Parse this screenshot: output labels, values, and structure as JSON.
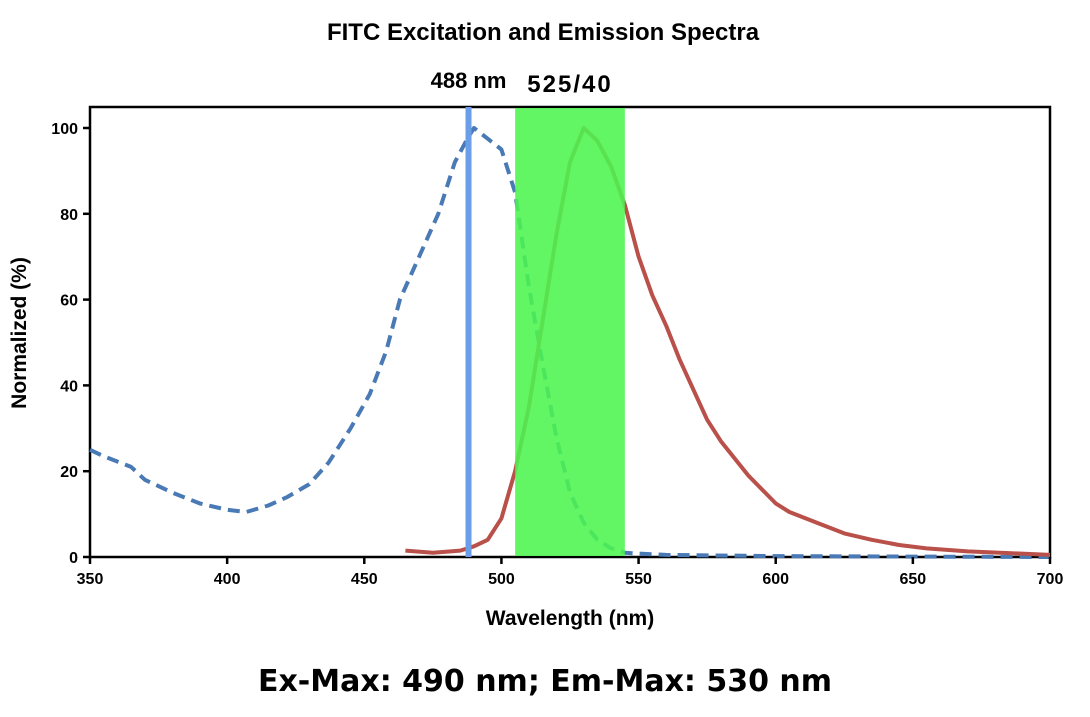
{
  "chart_data": {
    "type": "line",
    "title": "FITC Excitation and Emission Spectra",
    "xlabel": "Wavelength (nm)",
    "ylabel": "Normalized (%)",
    "xlim": [
      350,
      700
    ],
    "ylim": [
      0,
      100
    ],
    "xticks": [
      350,
      400,
      450,
      500,
      550,
      600,
      650,
      700
    ],
    "yticks": [
      0,
      20,
      40,
      60,
      80,
      100
    ],
    "grid": false,
    "series": [
      {
        "id": "excitation",
        "style": "dashed",
        "color": "#4a7ab5",
        "x": [
          350,
          355,
          365,
          370,
          380,
          390,
          400,
          407,
          415,
          422,
          430,
          437,
          445,
          452,
          458,
          463,
          470,
          477,
          483,
          488,
          490,
          495,
          500,
          505,
          510,
          515,
          520,
          525,
          530,
          535,
          540,
          545,
          550,
          560,
          600,
          650,
          700
        ],
        "y": [
          25,
          23.5,
          21,
          18,
          15,
          12.5,
          11,
          10.5,
          12,
          14,
          17,
          22,
          30,
          38,
          48,
          60,
          70,
          80,
          92,
          98,
          100,
          97.5,
          95,
          85,
          63,
          45,
          28,
          15,
          8,
          4,
          2,
          1,
          0.8,
          0.5,
          0.2,
          0.1,
          0
        ]
      },
      {
        "id": "emission",
        "style": "solid",
        "color": "#b9504a",
        "x": [
          465,
          475,
          485,
          490,
          495,
          500,
          505,
          510,
          515,
          520,
          525,
          530,
          535,
          540,
          545,
          550,
          555,
          560,
          565,
          570,
          575,
          580,
          590,
          600,
          605,
          615,
          625,
          635,
          645,
          655,
          670,
          685,
          700
        ],
        "y": [
          1.5,
          1,
          1.5,
          2.5,
          4,
          9,
          20,
          35,
          55,
          75,
          92,
          100,
          97,
          91,
          82,
          70,
          61,
          54,
          46,
          39,
          32,
          27,
          19,
          12.5,
          10.5,
          8,
          5.5,
          4,
          2.8,
          2,
          1.3,
          0.9,
          0.5
        ]
      }
    ],
    "annotations": {
      "laser_line": {
        "x": 488,
        "label": "488 nm",
        "color": "#6a9ee8"
      },
      "filter_band": {
        "x_range": [
          505,
          545
        ],
        "label": "525/40",
        "color": "#4cf550"
      }
    }
  },
  "footer": "Ex-Max: 490 nm; Em-Max: 530 nm"
}
